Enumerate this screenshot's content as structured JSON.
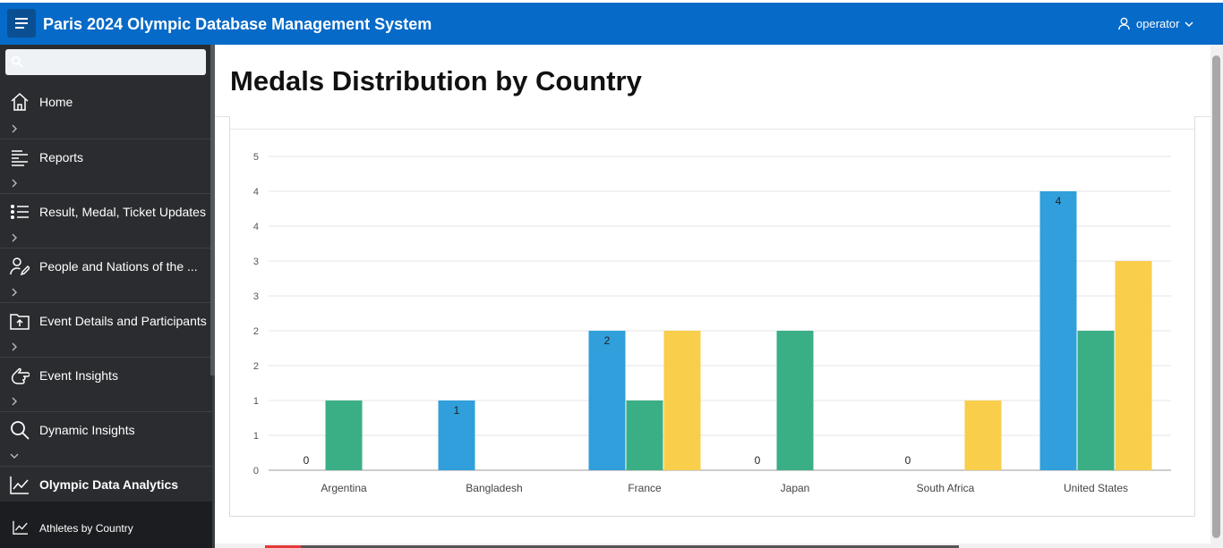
{
  "header": {
    "title": "Paris 2024 Olympic Database Management System",
    "user": "operator"
  },
  "search": {
    "placeholder": ""
  },
  "sidebar": {
    "items": [
      {
        "label": "Home",
        "icon": "home-icon"
      },
      {
        "label": "Reports",
        "icon": "reports-icon"
      },
      {
        "label": "Result, Medal, Ticket Updates",
        "icon": "list-icon"
      },
      {
        "label": "People and Nations of the ...",
        "icon": "person-edit-icon"
      },
      {
        "label": "Event Details and Participants",
        "icon": "folder-upload-icon"
      },
      {
        "label": "Event Insights",
        "icon": "hand-pointer-icon"
      },
      {
        "label": "Dynamic Insights",
        "icon": "search-icon"
      },
      {
        "label": "Olympic Data Analytics",
        "icon": "line-chart-icon"
      }
    ],
    "sub_item": {
      "label": "Athletes by Country",
      "icon": "line-chart-icon"
    }
  },
  "main": {
    "page_title": "Medals Distribution by Country"
  },
  "chart_data": {
    "type": "bar",
    "categories": [
      "Argentina",
      "Bangladesh",
      "France",
      "Japan",
      "South Africa",
      "United States"
    ],
    "series": [
      {
        "values": [
          0,
          1,
          2,
          0,
          0,
          4
        ],
        "color": "#309fdb"
      },
      {
        "values": [
          1,
          0,
          1,
          2,
          0,
          2
        ],
        "color": "#3aaf85"
      },
      {
        "values": [
          0,
          0,
          2,
          0,
          1,
          3
        ],
        "color": "#f8ce4a"
      }
    ],
    "data_labels": [
      {
        "series": 0,
        "category": 0,
        "text": "0"
      },
      {
        "series": 0,
        "category": 1,
        "text": "1"
      },
      {
        "series": 0,
        "category": 2,
        "text": "2"
      },
      {
        "series": 0,
        "category": 3,
        "text": "0"
      },
      {
        "series": 0,
        "category": 4,
        "text": "0"
      },
      {
        "series": 0,
        "category": 5,
        "text": "4"
      }
    ],
    "ylim": [
      0,
      4.5
    ],
    "ytick_values": [
      0,
      0.5,
      1,
      1.5,
      2,
      2.5,
      3,
      3.5,
      4,
      4.5
    ],
    "ytick_labels": [
      "0",
      "1",
      "1",
      "2",
      "2",
      "3",
      "3",
      "4",
      "4",
      "5"
    ],
    "grid": true,
    "title": "",
    "xlabel": "",
    "ylabel": ""
  }
}
